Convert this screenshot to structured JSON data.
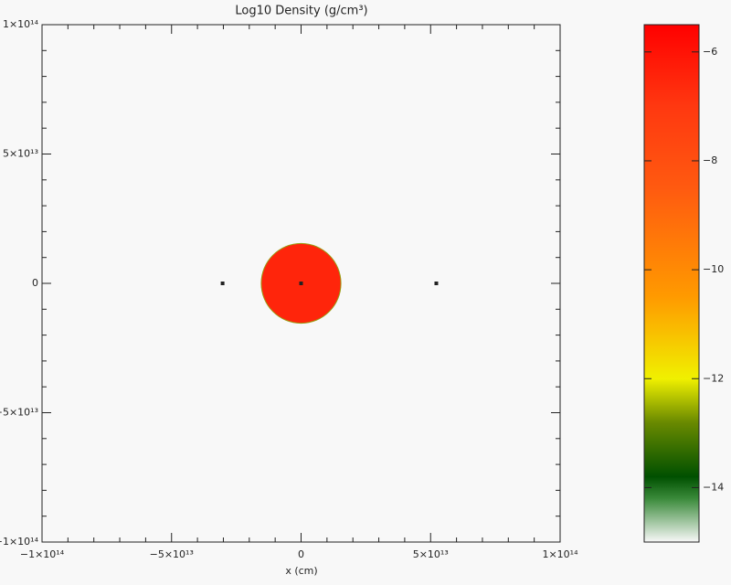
{
  "chart_data": {
    "type": "image",
    "title": "Log10 Density (g/cm³)",
    "xlabel": "x (cm)",
    "xlim": [
      -100000000000000.0,
      100000000000000.0
    ],
    "ylim": [
      -100000000000000.0,
      100000000000000.0
    ],
    "xticks": [
      {
        "value": -100000000000000.0,
        "label": "−1×10¹⁴"
      },
      {
        "value": -50000000000000.0,
        "label": "−5×10¹³"
      },
      0,
      {
        "value": 50000000000000.0,
        "label": "5×10¹³"
      },
      {
        "value": 100000000000000.0,
        "label": "1×10¹⁴"
      }
    ],
    "yticks": [
      {
        "value": -100000000000000.0,
        "label": "−1×10¹⁴"
      },
      {
        "value": -50000000000000.0,
        "label": "−5×10¹³"
      },
      0,
      {
        "value": 50000000000000.0,
        "label": "5×10¹³"
      },
      {
        "value": 100000000000000.0,
        "label": "1×10¹⁴"
      }
    ],
    "minor_divisions": 5,
    "disk": {
      "x": 0,
      "y": 0,
      "radius": 15200000000000.0,
      "value": -6.5
    },
    "points": {
      "x": [
        -30300000000000.0,
        0,
        52200000000000.0
      ],
      "y": [
        0,
        0,
        0
      ],
      "color": "#222222"
    },
    "clim": [
      -15,
      -5.5
    ],
    "cticks": [
      {
        "value": -14,
        "label": "−14"
      },
      {
        "value": -12,
        "label": "−12"
      },
      {
        "value": -10,
        "label": "−10"
      },
      {
        "value": -8,
        "label": "−8"
      },
      {
        "value": -6,
        "label": "−6"
      }
    ],
    "colormap": [
      {
        "value": -15,
        "color": "#f8f8f8"
      },
      {
        "value": -14.2,
        "color": "#3a8a3a"
      },
      {
        "value": -13.8,
        "color": "#005000"
      },
      {
        "value": -12.8,
        "color": "#6a8a00"
      },
      {
        "value": -12,
        "color": "#f0f000"
      },
      {
        "value": -10.5,
        "color": "#ff9a00"
      },
      {
        "value": -8.5,
        "color": "#ff5a10"
      },
      {
        "value": -7,
        "color": "#ff3810"
      },
      {
        "value": -5.5,
        "color": "#ff0000"
      }
    ]
  }
}
